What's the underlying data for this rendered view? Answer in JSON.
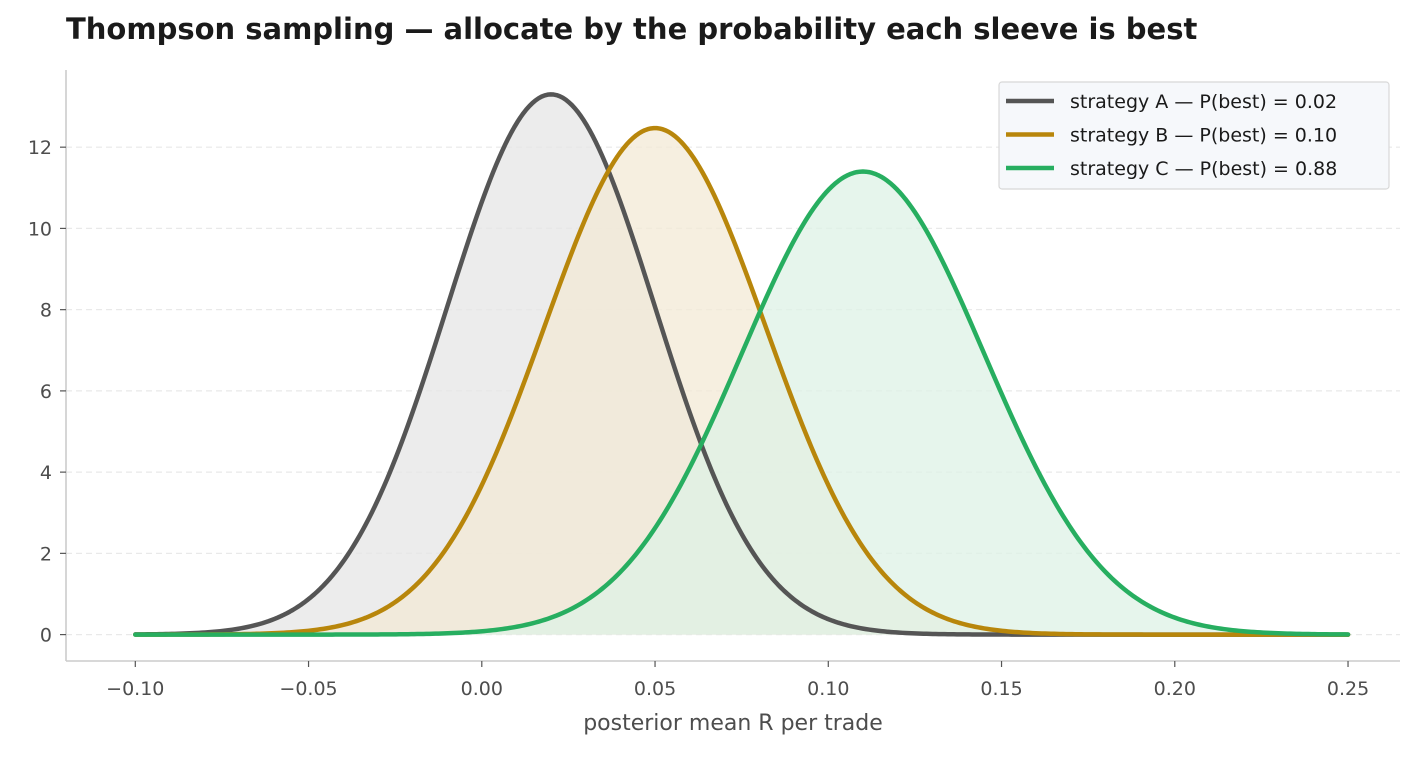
{
  "chart_data": {
    "type": "area",
    "title": "Thompson sampling — allocate by the probability each sleeve is best",
    "xlabel": "posterior mean R per trade",
    "ylabel": "",
    "xlim": [
      -0.12,
      0.265
    ],
    "ylim": [
      -0.65,
      13.9
    ],
    "x_ticks": [
      -0.1,
      -0.05,
      0.0,
      0.05,
      0.1,
      0.15,
      0.2,
      0.25
    ],
    "x_tick_labels": [
      "−0.10",
      "−0.05",
      "0.00",
      "0.05",
      "0.10",
      "0.15",
      "0.20",
      "0.25"
    ],
    "y_ticks": [
      0,
      2,
      4,
      6,
      8,
      10,
      12
    ],
    "y_tick_labels": [
      "0",
      "2",
      "4",
      "6",
      "8",
      "10",
      "12"
    ],
    "grid": "horizontal dashed",
    "legend_position": "top-right",
    "x_range": [
      -0.1,
      0.25
    ],
    "series": [
      {
        "name": "strategy A — P(best) = 0.02",
        "distribution": "normal",
        "mean": 0.02,
        "sd": 0.03,
        "peak": 13.3,
        "color": "#555555",
        "fill": "#e5e5e5"
      },
      {
        "name": "strategy B — P(best) = 0.10",
        "distribution": "normal",
        "mean": 0.05,
        "sd": 0.032,
        "peak": 12.47,
        "color": "#b8860b",
        "fill": "#f3ead5"
      },
      {
        "name": "strategy C — P(best) = 0.88",
        "distribution": "normal",
        "mean": 0.11,
        "sd": 0.035,
        "peak": 11.4,
        "color": "#27ae60",
        "fill": "#def1e6"
      }
    ]
  }
}
